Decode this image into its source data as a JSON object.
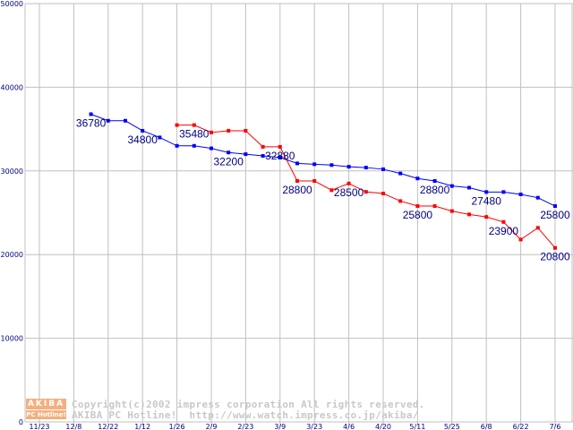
{
  "chart_data": {
    "type": "line",
    "title": "",
    "xlabel": "",
    "ylabel": "",
    "ylim": [
      0,
      50000
    ],
    "yticks": [
      "0",
      "10000",
      "20000",
      "30000",
      "40000",
      "50000"
    ],
    "x_tick_labels": [
      "11/23",
      "12/8",
      "12/22",
      "1/12",
      "1/26",
      "2/9",
      "2/23",
      "3/9",
      "3/23",
      "4/6",
      "4/20",
      "5/11",
      "5/25",
      "6/8",
      "6/22",
      "7/6"
    ],
    "grid": true,
    "series": [
      {
        "name": "blue",
        "color": "#0000ff",
        "start_index": 3,
        "values": [
          36780,
          36000,
          36000,
          34800,
          34000,
          33000,
          33000,
          32700,
          32200,
          32000,
          31800,
          31600,
          30900,
          30800,
          30700,
          30500,
          30400,
          30200,
          29700,
          29100,
          28800,
          28200,
          28000,
          27480,
          27480,
          27200,
          26800,
          25800
        ],
        "labels": [
          {
            "index": 3,
            "text": "36780"
          },
          {
            "index": 6,
            "text": "34800"
          },
          {
            "index": 11,
            "text": "32200"
          },
          {
            "index": 23,
            "text": "28800"
          },
          {
            "index": 26,
            "text": "27480"
          },
          {
            "index": 30,
            "text": "25800"
          }
        ]
      },
      {
        "name": "red",
        "color": "#ff0000",
        "start_index": 8,
        "values": [
          35480,
          35480,
          34600,
          34800,
          34800,
          32880,
          32880,
          28800,
          28800,
          27700,
          28500,
          27500,
          27300,
          26400,
          25800,
          25800,
          25200,
          24800,
          24500,
          23900,
          21800,
          23200,
          20800
        ],
        "labels": [
          {
            "index": 9,
            "text": "35480"
          },
          {
            "index": 14,
            "text": "32880"
          },
          {
            "index": 15,
            "text": "28800"
          },
          {
            "index": 18,
            "text": "28500"
          },
          {
            "index": 22,
            "text": "25800"
          },
          {
            "index": 27,
            "text": "23900"
          },
          {
            "index": 30,
            "text": "20800"
          }
        ]
      }
    ]
  },
  "watermark": {
    "logo_top": "AKIBA",
    "logo_bottom": "PC Hotline!",
    "line1": "Copyright(c)2002 impress corporation All rights reserved.",
    "line2": "AKIBA PC Hotline!  http://www.watch.impress.co.jp/akiba/"
  }
}
